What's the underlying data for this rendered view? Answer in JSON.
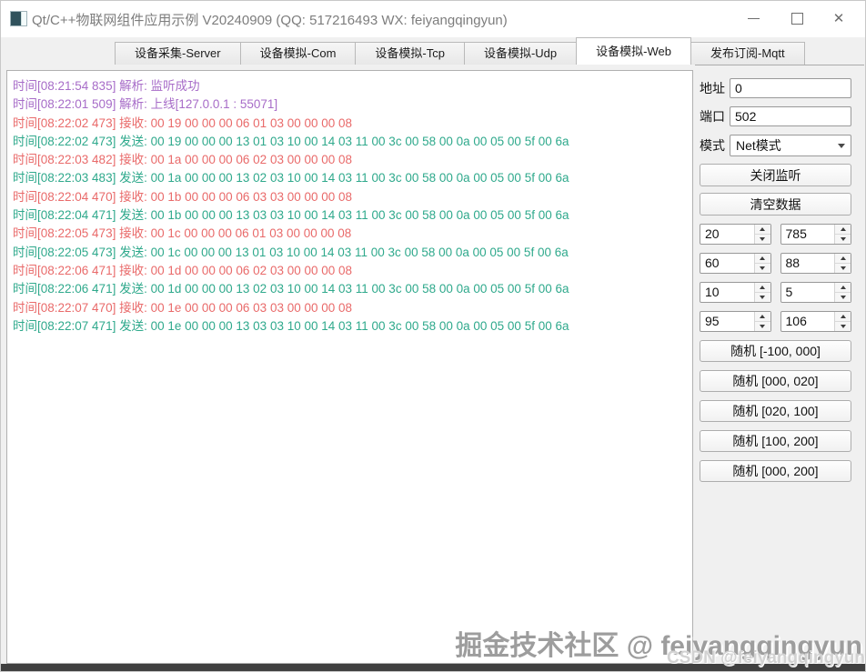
{
  "window": {
    "title": "Qt/C++物联网组件应用示例 V20240909 (QQ: 517216493 WX: feiyangqingyun)"
  },
  "icons": {
    "minimize": "—",
    "maximize": "□",
    "close": "✕",
    "chevron_down": "▼",
    "spin_up": "▲",
    "spin_down": "▼"
  },
  "tabs": {
    "active_index": 4,
    "items": [
      "设备采集-Server",
      "设备模拟-Com",
      "设备模拟-Tcp",
      "设备模拟-Udp",
      "设备模拟-Web",
      "发布订阅-Mqtt"
    ]
  },
  "colors": {
    "parse": "#a76cc8",
    "receive": "#e96a6a",
    "send": "#2fa98c",
    "log_border": "#b0b0b0"
  },
  "log": {
    "lines": [
      {
        "kind": "parse",
        "text": "时间[08:21:54 835] 解析: 监听成功"
      },
      {
        "kind": "parse",
        "text": "时间[08:22:01 509] 解析: 上线[127.0.0.1 : 55071]"
      },
      {
        "kind": "receive",
        "text": "时间[08:22:02 473] 接收: 00 19 00 00 00 06 01 03 00 00 00 08"
      },
      {
        "kind": "send",
        "text": "时间[08:22:02 473] 发送: 00 19 00 00 00 13 01 03 10 00 14 03 11 00 3c 00 58 00 0a 00 05 00 5f 00 6a"
      },
      {
        "kind": "receive",
        "text": "时间[08:22:03 482] 接收: 00 1a 00 00 00 06 02 03 00 00 00 08"
      },
      {
        "kind": "send",
        "text": "时间[08:22:03 483] 发送: 00 1a 00 00 00 13 02 03 10 00 14 03 11 00 3c 00 58 00 0a 00 05 00 5f 00 6a"
      },
      {
        "kind": "receive",
        "text": "时间[08:22:04 470] 接收: 00 1b 00 00 00 06 03 03 00 00 00 08"
      },
      {
        "kind": "send",
        "text": "时间[08:22:04 471] 发送: 00 1b 00 00 00 13 03 03 10 00 14 03 11 00 3c 00 58 00 0a 00 05 00 5f 00 6a"
      },
      {
        "kind": "receive",
        "text": "时间[08:22:05 473] 接收: 00 1c 00 00 00 06 01 03 00 00 00 08"
      },
      {
        "kind": "send",
        "text": "时间[08:22:05 473] 发送: 00 1c 00 00 00 13 01 03 10 00 14 03 11 00 3c 00 58 00 0a 00 05 00 5f 00 6a"
      },
      {
        "kind": "receive",
        "text": "时间[08:22:06 471] 接收: 00 1d 00 00 00 06 02 03 00 00 00 08"
      },
      {
        "kind": "send",
        "text": "时间[08:22:06 471] 发送: 00 1d 00 00 00 13 02 03 10 00 14 03 11 00 3c 00 58 00 0a 00 05 00 5f 00 6a"
      },
      {
        "kind": "receive",
        "text": "时间[08:22:07 470] 接收: 00 1e 00 00 00 06 03 03 00 00 00 08"
      },
      {
        "kind": "send",
        "text": "时间[08:22:07 471] 发送: 00 1e 00 00 00 13 03 03 10 00 14 03 11 00 3c 00 58 00 0a 00 05 00 5f 00 6a"
      }
    ]
  },
  "panel": {
    "address_label": "地址",
    "address_value": "0",
    "port_label": "端口",
    "port_value": "502",
    "mode_label": "模式",
    "mode_value": "Net模式",
    "listen_button": "关闭监听",
    "clear_button": "清空数据",
    "spin_rows": [
      [
        "20",
        "785"
      ],
      [
        "60",
        "88"
      ],
      [
        "10",
        "5"
      ],
      [
        "95",
        "106"
      ]
    ],
    "random_buttons": [
      "随机 [-100, 000]",
      "随机 [000, 020]",
      "随机 [020, 100]",
      "随机 [100, 200]",
      "随机 [000, 200]"
    ]
  },
  "watermark": {
    "line1": "掘金技术社区 @ feiyangqingyun",
    "line2": "CSDN @feiyangqingyun"
  }
}
